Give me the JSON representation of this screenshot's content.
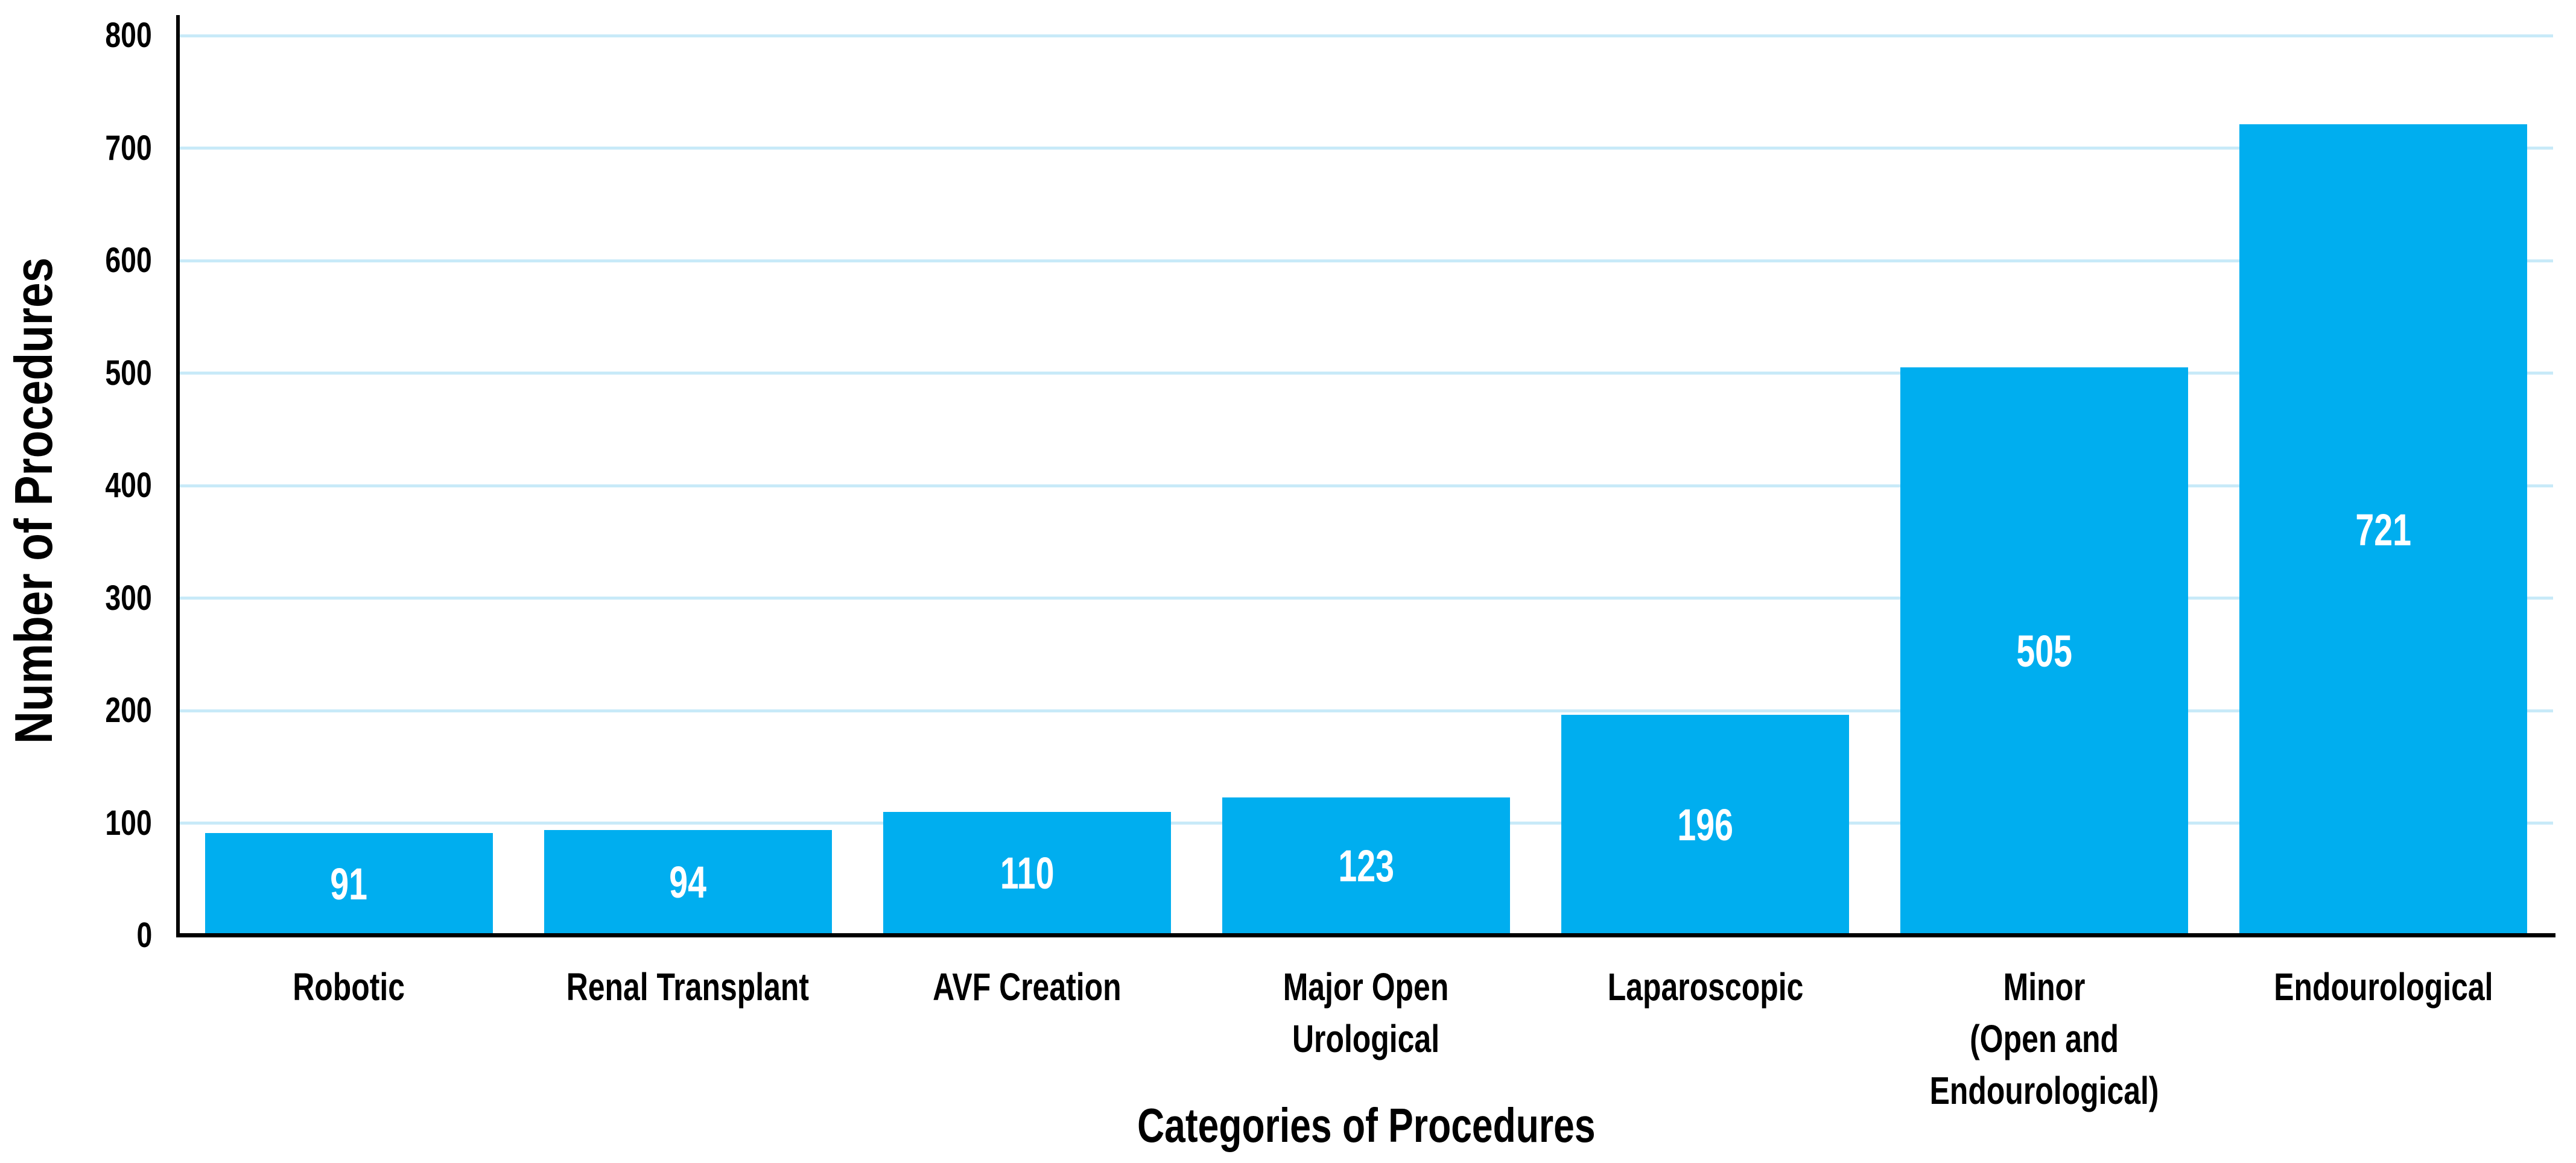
{
  "chart_data": {
    "type": "bar",
    "title": "",
    "categories": [
      "Robotic",
      "Renal Transplant",
      "AVF Creation",
      "Major Open\nUrological",
      "Laparoscopic",
      "Minor\n(Open and\nEndourological)",
      "Endourological"
    ],
    "values": [
      91,
      94,
      110,
      123,
      196,
      505,
      721
    ],
    "value_labels": [
      "91",
      "94",
      "110",
      "123",
      "196",
      "505",
      "721"
    ],
    "xlabel": "Categories of Procedures",
    "ylabel": "Number of Procedures",
    "ylim": [
      0,
      800
    ],
    "yticks": [
      0,
      100,
      200,
      300,
      400,
      500,
      600,
      700,
      800
    ],
    "ytick_labels": [
      "0",
      "100",
      "200",
      "300",
      "400",
      "500",
      "600",
      "700",
      "800"
    ],
    "grid": "horizontal gridlines at every y-tick, drawn behind bars",
    "legend": "none",
    "colors": {
      "bar": "#00AEEF",
      "value_label": "#FFFFFF",
      "gridline": "#C8EAF8",
      "axis": "#000000",
      "text": "#000000",
      "background": "#FFFFFF"
    }
  }
}
